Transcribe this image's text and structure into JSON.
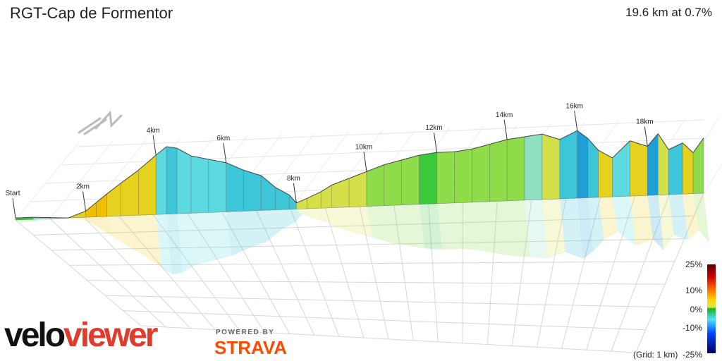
{
  "header": {
    "title": "RGT-Cap de Formentor",
    "summary": "19.6 km at 0.7%"
  },
  "legend": {
    "labels": [
      "25%",
      "10%",
      "0%",
      "-10%",
      "-25%"
    ],
    "grid_note": "(Grid: 1 km)"
  },
  "branding": {
    "logo_part1": "velo",
    "logo_part2": "viewer",
    "powered_by": "POWERED BY",
    "strava": "STRAVA",
    "logo_color": "#e03c2b",
    "strava_color": "#fc4c02"
  },
  "chart_data": {
    "type": "area",
    "title": "RGT-Cap de Formentor",
    "total_distance_km": 19.6,
    "average_gradient_pct": 0.7,
    "distance_markers": [
      "Start",
      "2km",
      "4km",
      "6km",
      "8km",
      "10km",
      "12km",
      "14km",
      "16km",
      "18km"
    ],
    "marker_distances_km": [
      0,
      2,
      4,
      6,
      8,
      10,
      12,
      14,
      16,
      18
    ],
    "x_km": [
      0,
      0.5,
      1,
      1.5,
      2,
      2.3,
      2.6,
      3,
      3.5,
      4,
      4.3,
      4.6,
      5,
      5.5,
      6,
      6.5,
      7,
      7.4,
      7.8,
      8,
      8.3,
      8.7,
      9,
      9.5,
      10,
      10.5,
      11,
      11.5,
      12,
      12.5,
      13,
      13.5,
      14,
      14.5,
      15,
      15.5,
      16,
      16.3,
      16.6,
      17,
      17.5,
      18,
      18.3,
      18.6,
      19,
      19.3,
      19.6
    ],
    "elevation_rel": [
      2,
      2,
      1,
      0,
      6,
      14,
      22,
      32,
      44,
      58,
      66,
      64,
      56,
      52,
      48,
      40,
      34,
      22,
      14,
      6,
      10,
      16,
      22,
      28,
      34,
      40,
      44,
      48,
      50,
      50,
      52,
      56,
      60,
      62,
      64,
      58,
      66,
      58,
      46,
      38,
      54,
      48,
      60,
      44,
      50,
      40,
      54
    ],
    "gradient_pct": [
      0,
      0,
      -2,
      -2,
      6,
      8,
      7,
      6,
      5,
      6,
      -3,
      -5,
      -4,
      -3,
      -4,
      -5,
      -6,
      -7,
      -6,
      -5,
      3,
      3,
      3,
      3,
      3,
      2,
      2,
      1,
      0,
      1,
      2,
      2,
      2,
      1,
      -2,
      4,
      -6,
      -8,
      -5,
      6,
      -4,
      6,
      -8,
      3,
      -7,
      5,
      2
    ],
    "grid": "1 km",
    "colorbar_range_pct": [
      -25,
      25
    ]
  }
}
